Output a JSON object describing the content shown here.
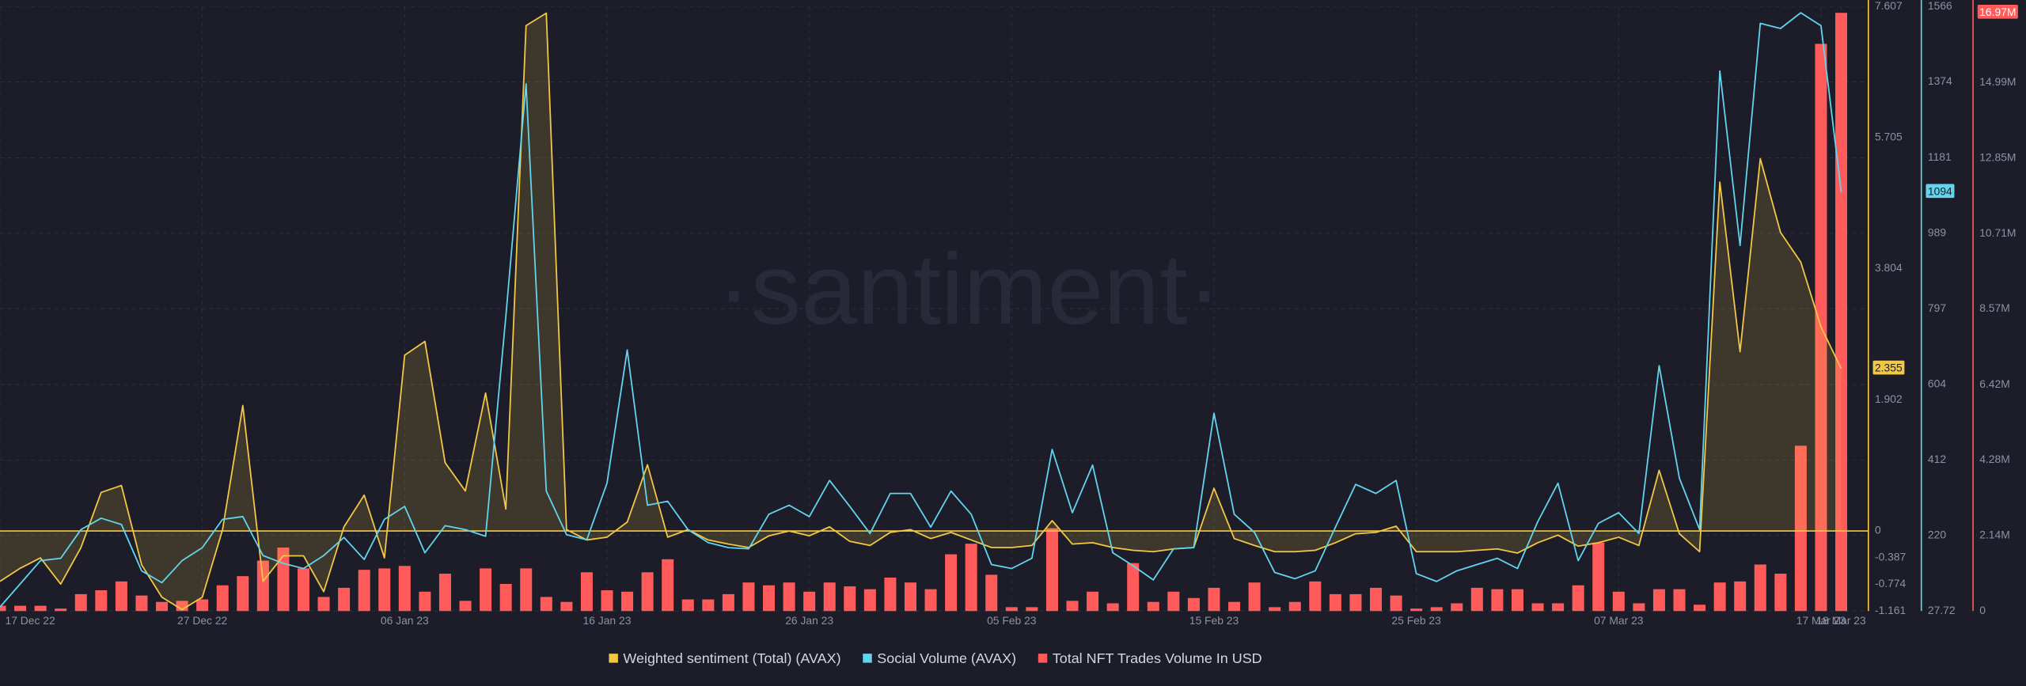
{
  "watermark": "·santiment·",
  "chart_data": {
    "type": "combo",
    "x": [
      "17 Dec 22",
      "18 Dec 22",
      "19 Dec 22",
      "20 Dec 22",
      "21 Dec 22",
      "22 Dec 22",
      "23 Dec 22",
      "24 Dec 22",
      "25 Dec 22",
      "26 Dec 22",
      "27 Dec 22",
      "28 Dec 22",
      "29 Dec 22",
      "30 Dec 22",
      "31 Dec 22",
      "01 Jan 23",
      "02 Jan 23",
      "03 Jan 23",
      "04 Jan 23",
      "05 Jan 23",
      "06 Jan 23",
      "07 Jan 23",
      "08 Jan 23",
      "09 Jan 23",
      "10 Jan 23",
      "11 Jan 23",
      "12 Jan 23",
      "13 Jan 23",
      "14 Jan 23",
      "15 Jan 23",
      "16 Jan 23",
      "17 Jan 23",
      "18 Jan 23",
      "19 Jan 23",
      "20 Jan 23",
      "21 Jan 23",
      "22 Jan 23",
      "23 Jan 23",
      "24 Jan 23",
      "25 Jan 23",
      "26 Jan 23",
      "27 Jan 23",
      "28 Jan 23",
      "29 Jan 23",
      "30 Jan 23",
      "31 Jan 23",
      "01 Feb 23",
      "02 Feb 23",
      "03 Feb 23",
      "04 Feb 23",
      "05 Feb 23",
      "06 Feb 23",
      "07 Feb 23",
      "08 Feb 23",
      "09 Feb 23",
      "10 Feb 23",
      "11 Feb 23",
      "12 Feb 23",
      "13 Feb 23",
      "14 Feb 23",
      "15 Feb 23",
      "16 Feb 23",
      "17 Feb 23",
      "18 Feb 23",
      "19 Feb 23",
      "20 Feb 23",
      "21 Feb 23",
      "22 Feb 23",
      "23 Feb 23",
      "24 Feb 23",
      "25 Feb 23",
      "26 Feb 23",
      "27 Feb 23",
      "28 Feb 23",
      "01 Mar 23",
      "02 Mar 23",
      "03 Mar 23",
      "04 Mar 23",
      "05 Mar 23",
      "06 Mar 23",
      "07 Mar 23",
      "08 Mar 23",
      "09 Mar 23",
      "10 Mar 23",
      "11 Mar 23",
      "12 Mar 23",
      "13 Mar 23",
      "14 Mar 23",
      "15 Mar 23",
      "16 Mar 23",
      "17 Mar 23",
      "18 Mar 23"
    ],
    "xticks": [
      "17 Dec 22",
      "27 Dec 22",
      "06 Jan 23",
      "16 Jan 23",
      "26 Jan 23",
      "05 Feb 23",
      "15 Feb 23",
      "25 Feb 23",
      "07 Mar 23",
      "17 Mar 23",
      "18 Mar 23"
    ],
    "ylim": [
      -1.161,
      7.607
    ],
    "yticks": [
      7.607,
      5.705,
      3.804,
      1.902,
      0,
      -0.387,
      -0.774,
      -1.161
    ],
    "y2lim": [
      27.72,
      1566
    ],
    "y2ticks": [
      1566,
      1374,
      1181,
      989,
      797,
      604,
      412,
      220,
      27.72
    ],
    "y3lim": [
      0,
      17.15
    ],
    "y3ticks": [
      {
        "value": 14.99,
        "label": "14.99M"
      },
      {
        "value": 12.85,
        "label": "12.85M"
      },
      {
        "value": 10.71,
        "label": "10.71M"
      },
      {
        "value": 8.57,
        "label": "8.57M"
      },
      {
        "value": 6.42,
        "label": "6.42M"
      },
      {
        "value": 4.28,
        "label": "4.28M"
      },
      {
        "value": 2.14,
        "label": "2.14M"
      },
      0
    ],
    "grid": true,
    "legend": "bottom",
    "series": [
      {
        "name": "Weighted sentiment (Total) (AVAX)",
        "type": "area",
        "axis": "y",
        "color": "#f3c746",
        "values": [
          -0.73,
          -0.54,
          -0.39,
          -0.77,
          -0.24,
          0.56,
          0.66,
          -0.49,
          -0.96,
          -1.14,
          -0.96,
          0.02,
          1.82,
          -0.73,
          -0.36,
          -0.36,
          -0.88,
          0.06,
          0.52,
          -0.39,
          2.55,
          2.75,
          0.99,
          0.58,
          2.0,
          0.32,
          7.33,
          7.51,
          0.02,
          -0.13,
          -0.09,
          0.13,
          0.96,
          -0.09,
          0.02,
          -0.13,
          -0.19,
          -0.24,
          -0.07,
          0.0,
          -0.07,
          0.06,
          -0.15,
          -0.21,
          -0.02,
          0.02,
          -0.11,
          -0.02,
          -0.13,
          -0.24,
          -0.24,
          -0.21,
          0.15,
          -0.19,
          -0.17,
          -0.24,
          -0.28,
          -0.3,
          -0.26,
          -0.24,
          0.62,
          -0.11,
          -0.21,
          -0.3,
          -0.3,
          -0.28,
          -0.17,
          -0.04,
          -0.02,
          0.07,
          -0.3,
          -0.3,
          -0.3,
          -0.28,
          -0.26,
          -0.32,
          -0.17,
          -0.06,
          -0.22,
          -0.17,
          -0.09,
          -0.21,
          0.88,
          -0.04,
          -0.3,
          5.06,
          2.6,
          5.4,
          4.33,
          3.9,
          2.96,
          2.355
        ]
      },
      {
        "name": "Social Volume (AVAX)",
        "type": "line",
        "axis": "y2",
        "color": "#63d4ee",
        "values": [
          38,
          97,
          156,
          162,
          235,
          264,
          248,
          130,
          100,
          156,
          189,
          261,
          268,
          169,
          149,
          136,
          169,
          215,
          159,
          261,
          294,
          176,
          245,
          235,
          218,
          777,
          1369,
          333,
          222,
          209,
          353,
          692,
          297,
          307,
          235,
          202,
          189,
          186,
          274,
          297,
          268,
          360,
          294,
          225,
          327,
          327,
          241,
          333,
          274,
          146,
          136,
          162,
          439,
          278,
          399,
          176,
          143,
          107,
          186,
          189,
          531,
          274,
          228,
          126,
          110,
          130,
          241,
          350,
          327,
          360,
          123,
          103,
          130,
          146,
          162,
          136,
          255,
          353,
          156,
          251,
          278,
          225,
          652,
          366,
          235,
          1402,
          958,
          1523,
          1510,
          1550,
          1517,
          1094
        ]
      },
      {
        "name": "Total NFT Trades Volume In USD",
        "type": "bar",
        "axis": "y3",
        "color": "#ff5b5b",
        "values": [
          0.15,
          0.15,
          0.15,
          0.07,
          0.48,
          0.59,
          0.84,
          0.44,
          0.26,
          0.29,
          0.33,
          0.73,
          0.99,
          1.43,
          1.8,
          1.21,
          0.4,
          0.66,
          1.17,
          1.21,
          1.28,
          0.55,
          1.06,
          0.29,
          1.21,
          0.77,
          1.21,
          0.4,
          0.26,
          1.1,
          0.59,
          0.55,
          1.1,
          1.47,
          0.33,
          0.33,
          0.48,
          0.81,
          0.73,
          0.81,
          0.55,
          0.81,
          0.7,
          0.62,
          0.95,
          0.81,
          0.62,
          1.61,
          1.91,
          1.03,
          0.11,
          0.11,
          2.35,
          0.29,
          0.55,
          0.22,
          1.36,
          0.26,
          0.55,
          0.37,
          0.66,
          0.26,
          0.81,
          0.11,
          0.26,
          0.84,
          0.48,
          0.48,
          0.66,
          0.44,
          0.07,
          0.11,
          0.22,
          0.66,
          0.62,
          0.62,
          0.22,
          0.22,
          0.73,
          1.94,
          0.55,
          0.22,
          0.62,
          0.62,
          0.18,
          0.81,
          0.84,
          1.32,
          1.06,
          4.69,
          16.09,
          16.97
        ],
        "value_labels": [
          null,
          null,
          null,
          null,
          null,
          null,
          null,
          null,
          null,
          null,
          null,
          null,
          null,
          null,
          null,
          null,
          null,
          null,
          null,
          null,
          null,
          null,
          null,
          null,
          null,
          null,
          null,
          null,
          null,
          null,
          null,
          null,
          null,
          null,
          null,
          null,
          null,
          null,
          null,
          null,
          null,
          null,
          null,
          null,
          null,
          null,
          null,
          null,
          null,
          null,
          null,
          null,
          null,
          null,
          null,
          null,
          null,
          null,
          null,
          null,
          null,
          null,
          null,
          null,
          null,
          null,
          null,
          null,
          null,
          null,
          null,
          null,
          null,
          null,
          null,
          null,
          null,
          null,
          null,
          null,
          null,
          null,
          null,
          null,
          null,
          null,
          null,
          null,
          null,
          null,
          null,
          "16.97M"
        ]
      }
    ]
  }
}
